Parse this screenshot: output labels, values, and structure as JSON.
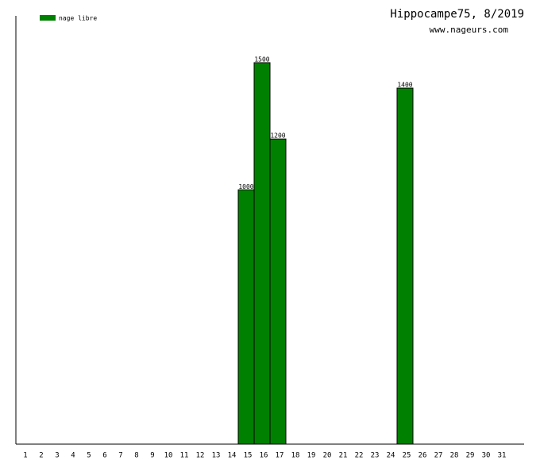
{
  "chart_data": {
    "type": "bar",
    "title": "Hippocampe75, 8/2019",
    "subtitle": "www.nageurs.com",
    "categories": [
      "1",
      "2",
      "3",
      "4",
      "5",
      "6",
      "7",
      "8",
      "9",
      "10",
      "11",
      "12",
      "13",
      "14",
      "15",
      "16",
      "17",
      "18",
      "19",
      "20",
      "21",
      "22",
      "23",
      "24",
      "25",
      "26",
      "27",
      "28",
      "29",
      "30",
      "31"
    ],
    "series": [
      {
        "name": "nage libre",
        "color": "#008000",
        "values": [
          null,
          null,
          null,
          null,
          null,
          null,
          null,
          null,
          null,
          null,
          null,
          null,
          null,
          null,
          1000,
          1500,
          1200,
          null,
          null,
          null,
          null,
          null,
          null,
          null,
          1400,
          null,
          null,
          null,
          null,
          null,
          null
        ]
      }
    ],
    "ylim": [
      0,
      1500
    ],
    "legend": "top-left"
  }
}
